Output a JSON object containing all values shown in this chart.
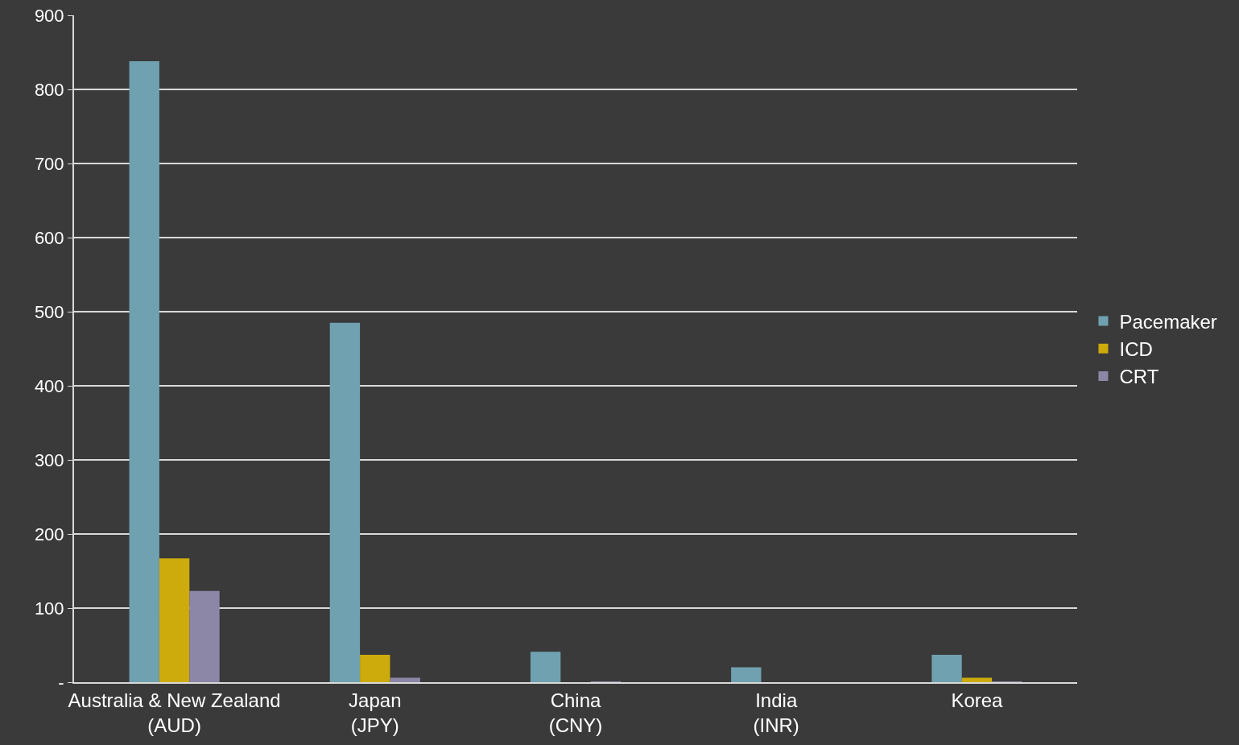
{
  "chart_data": {
    "type": "bar",
    "categories": [
      "Australia & New Zealand (AUD)",
      "Japan (JPY)",
      "China (CNY)",
      "India (INR)",
      "Korea"
    ],
    "series": [
      {
        "name": "Pacemaker",
        "color": "#70a1b0",
        "values": [
          838,
          485,
          41,
          20,
          37
        ]
      },
      {
        "name": "ICD",
        "color": "#cdab0d",
        "values": [
          167,
          37,
          0,
          0,
          6
        ]
      },
      {
        "name": "CRT",
        "color": "#8c87a6",
        "values": [
          123,
          6,
          1,
          0,
          1
        ]
      }
    ],
    "ylim": [
      0,
      900
    ],
    "yticks": [
      {
        "value": 0,
        "label": "-"
      },
      100,
      200,
      300,
      400,
      500,
      600,
      700,
      800,
      900
    ],
    "grid": "y",
    "legend": "right"
  }
}
